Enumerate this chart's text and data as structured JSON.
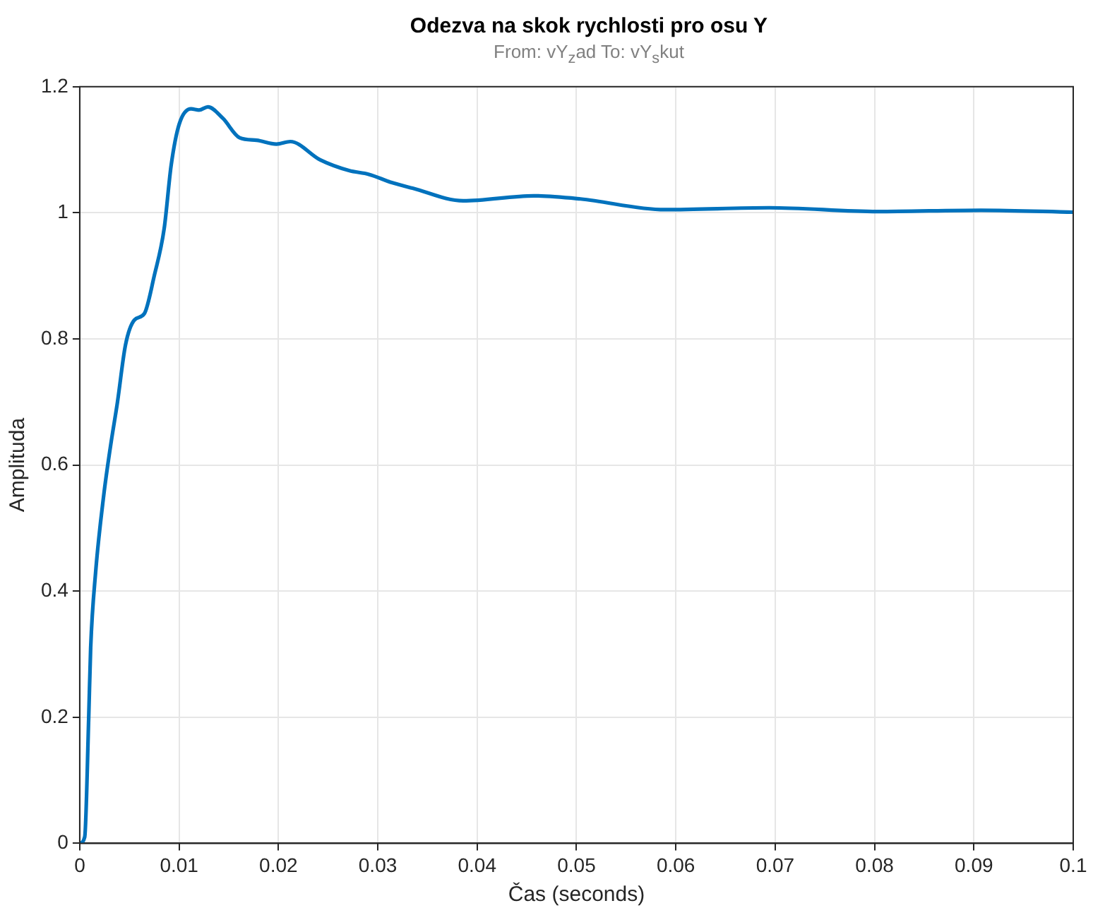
{
  "chart_data": {
    "type": "line",
    "title": "Odezva na skok rychlosti pro osu Y",
    "subtitle": "From: vY$_{z}$ad  To: vY$_{s}$kut",
    "xlabel": "Čas (seconds)",
    "ylabel": "Amplituda",
    "xlim": [
      0,
      0.1
    ],
    "ylim": [
      0,
      1.2
    ],
    "xticks": [
      0,
      0.01,
      0.02,
      0.03,
      0.04,
      0.05,
      0.06,
      0.07,
      0.08,
      0.09,
      0.1
    ],
    "yticks": [
      0,
      0.2,
      0.4,
      0.6,
      0.8,
      1,
      1.2
    ],
    "grid": true,
    "legend": false,
    "marker": "none",
    "line_style": "solid",
    "x": [
      0,
      0.0005,
      0.0009,
      0.0011,
      0.0016,
      0.0024,
      0.0031,
      0.0038,
      0.0046,
      0.0055,
      0.0065,
      0.0075,
      0.0085,
      0.0092,
      0.01,
      0.0112,
      0.012,
      0.0129,
      0.0144,
      0.0161,
      0.0178,
      0.0198,
      0.0212,
      0.0242,
      0.0271,
      0.0291,
      0.0314,
      0.0335,
      0.0386,
      0.0457,
      0.0504,
      0.0589,
      0.0694,
      0.0803,
      0.0907,
      0.1
    ],
    "series": [
      {
        "color": "#0072bd",
        "values": [
          0,
          0.01,
          0.197,
          0.31,
          0.43,
          0.55,
          0.63,
          0.7,
          0.79,
          0.83,
          0.84,
          0.9,
          0.975,
          1.075,
          1.14,
          1.165,
          1.163,
          1.168,
          1.15,
          1.119,
          1.115,
          1.109,
          1.113,
          1.084,
          1.067,
          1.061,
          1.048,
          1.039,
          1.019,
          1.027,
          1.022,
          1.005,
          1.008,
          1.002,
          1.004,
          1.001
        ]
      }
    ]
  }
}
